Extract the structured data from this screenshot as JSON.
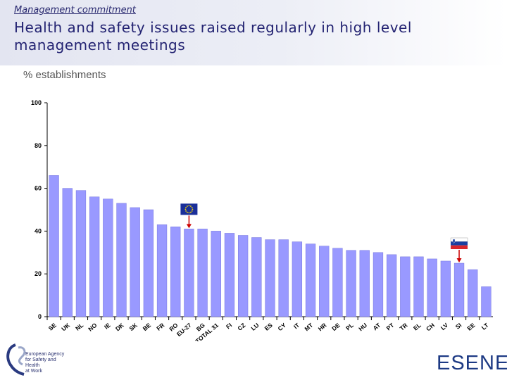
{
  "header": {
    "kicker": "Management commitment",
    "title": "Health and safety issues raised regularly in high level management meetings"
  },
  "unit_label": "% establishments",
  "colors": {
    "bar": "#9999ff",
    "bar_stroke": "#7777dd",
    "arrow": "#cc0000",
    "title": "#232372"
  },
  "footer": {
    "agency": [
      "European Agency",
      "for Safety and Health",
      "at Work"
    ],
    "brand": "ESENER"
  },
  "chart_data": {
    "type": "bar",
    "title": "Health and safety issues raised regularly in high level management meetings",
    "ylabel": "% establishments",
    "xlabel": "",
    "ylim": [
      0,
      100
    ],
    "yticks": [
      0,
      20,
      40,
      60,
      80,
      100
    ],
    "categories": [
      "SE",
      "UK",
      "NL",
      "NO",
      "IE",
      "DK",
      "SK",
      "BE",
      "FR",
      "RO",
      "EU-27",
      "BG",
      "TOTAL 31",
      "FI",
      "CZ",
      "LU",
      "ES",
      "CY",
      "IT",
      "MT",
      "HR",
      "DE",
      "PL",
      "HU",
      "AT",
      "PT",
      "TR",
      "EL",
      "CH",
      "LV",
      "SI",
      "EE",
      "LT"
    ],
    "values": [
      66,
      60,
      59,
      56,
      55,
      53,
      51,
      50,
      43,
      42,
      41,
      41,
      40,
      39,
      38,
      37,
      36,
      36,
      35,
      34,
      33,
      32,
      31,
      31,
      30,
      29,
      28,
      28,
      27,
      26,
      25,
      22,
      14
    ],
    "highlights": [
      {
        "category": "EU-27",
        "marker": "eu-flag"
      },
      {
        "category": "SI",
        "marker": "slovenia-flag"
      }
    ]
  }
}
